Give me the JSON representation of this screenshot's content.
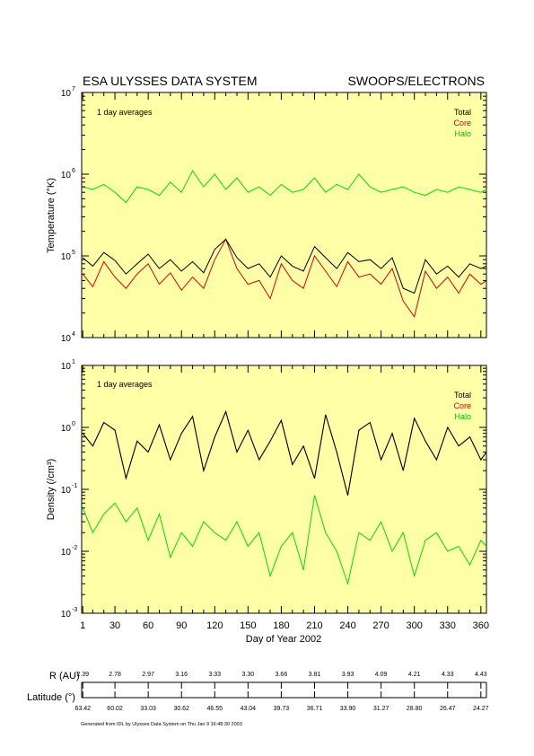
{
  "header": {
    "left_title": "ESA ULYSSES DATA SYSTEM",
    "right_title": "SWOOPS/ELECTRONS"
  },
  "colors": {
    "plot_bg": "#FFFFA8",
    "total": "#000000",
    "core": "#E00000",
    "halo": "#00E000"
  },
  "chart_data": [
    {
      "type": "line",
      "annotation": "1 day averages",
      "ylabel": "Temperature (°K)",
      "xlabel": "",
      "yscale": "log",
      "xlim": [
        0,
        365
      ],
      "ylim": [
        10000,
        10000000
      ],
      "y_tick_labels": [
        "10^4",
        "10^5",
        "10^6",
        "10^7"
      ],
      "legend_placement": "top-right",
      "series": [
        {
          "name": "Total",
          "color": "#000000",
          "x": [
            1,
            10,
            20,
            30,
            40,
            50,
            60,
            70,
            80,
            90,
            100,
            110,
            120,
            130,
            140,
            150,
            160,
            170,
            180,
            190,
            200,
            210,
            220,
            230,
            240,
            250,
            260,
            270,
            280,
            290,
            300,
            310,
            320,
            330,
            340,
            350,
            360,
            365
          ],
          "values": [
            95000,
            75000,
            110000,
            88000,
            60000,
            80000,
            105000,
            70000,
            90000,
            65000,
            85000,
            62000,
            120000,
            160000,
            95000,
            70000,
            80000,
            55000,
            100000,
            75000,
            65000,
            130000,
            95000,
            70000,
            110000,
            85000,
            90000,
            70000,
            95000,
            40000,
            35000,
            90000,
            60000,
            75000,
            55000,
            80000,
            70000,
            75000
          ]
        },
        {
          "name": "Core",
          "color": "#E00000",
          "x": [
            1,
            10,
            20,
            30,
            40,
            50,
            60,
            70,
            80,
            90,
            100,
            110,
            120,
            130,
            140,
            150,
            160,
            170,
            180,
            190,
            200,
            210,
            220,
            230,
            240,
            250,
            260,
            270,
            280,
            290,
            300,
            310,
            320,
            330,
            340,
            350,
            360,
            365
          ],
          "values": [
            60000,
            42000,
            85000,
            55000,
            40000,
            60000,
            80000,
            45000,
            62000,
            38000,
            55000,
            40000,
            90000,
            160000,
            70000,
            45000,
            50000,
            30000,
            80000,
            50000,
            40000,
            100000,
            65000,
            42000,
            85000,
            55000,
            60000,
            45000,
            70000,
            28000,
            18000,
            65000,
            40000,
            55000,
            35000,
            60000,
            45000,
            50000
          ]
        },
        {
          "name": "Halo",
          "color": "#00E000",
          "x": [
            1,
            10,
            20,
            30,
            40,
            50,
            60,
            70,
            80,
            90,
            100,
            110,
            120,
            130,
            140,
            150,
            160,
            170,
            180,
            190,
            200,
            210,
            220,
            230,
            240,
            250,
            260,
            270,
            280,
            290,
            300,
            310,
            320,
            330,
            340,
            350,
            360,
            365
          ],
          "values": [
            700000,
            650000,
            750000,
            600000,
            450000,
            700000,
            650000,
            550000,
            800000,
            600000,
            1100000,
            700000,
            1000000,
            650000,
            900000,
            600000,
            700000,
            550000,
            750000,
            600000,
            650000,
            900000,
            600000,
            750000,
            650000,
            1000000,
            700000,
            600000,
            650000,
            700000,
            600000,
            550000,
            650000,
            600000,
            700000,
            650000,
            600000,
            650000
          ]
        }
      ]
    },
    {
      "type": "line",
      "annotation": "1 day averages",
      "ylabel": "Density (/cm³)",
      "xlabel": "Day of Year 2002",
      "yscale": "log",
      "xlim": [
        0,
        365
      ],
      "ylim": [
        0.001,
        10
      ],
      "y_tick_labels": [
        "10^-3",
        "10^-2",
        "10^-1",
        "10^0",
        "10^1"
      ],
      "x_ticks": [
        1,
        30,
        60,
        90,
        120,
        150,
        180,
        210,
        240,
        270,
        300,
        330,
        360
      ],
      "legend_placement": "top-right",
      "series": [
        {
          "name": "Total",
          "color": "#000000",
          "x": [
            1,
            10,
            20,
            30,
            40,
            50,
            60,
            70,
            80,
            90,
            100,
            110,
            120,
            130,
            140,
            150,
            160,
            170,
            180,
            190,
            200,
            210,
            220,
            230,
            240,
            250,
            260,
            270,
            280,
            290,
            300,
            310,
            320,
            330,
            340,
            350,
            360,
            365
          ],
          "values": [
            0.8,
            0.5,
            1.2,
            0.9,
            0.15,
            0.6,
            0.4,
            1.1,
            0.3,
            0.8,
            1.5,
            0.2,
            0.7,
            1.8,
            0.4,
            0.9,
            0.3,
            0.6,
            1.3,
            0.25,
            0.5,
            0.15,
            1.6,
            0.4,
            0.08,
            0.9,
            1.2,
            0.3,
            0.8,
            0.2,
            1.4,
            0.6,
            0.3,
            1.0,
            0.5,
            0.7,
            0.3,
            0.4
          ]
        },
        {
          "name": "Core",
          "color": "#E00000",
          "x": [
            1,
            10,
            20,
            30,
            40,
            50,
            60,
            70,
            80,
            90,
            100,
            110,
            120,
            130,
            140,
            150,
            160,
            170,
            180,
            190,
            200,
            210,
            220,
            230,
            240,
            250,
            260,
            270,
            280,
            290,
            300,
            310,
            320,
            330,
            340,
            350,
            360,
            365
          ],
          "values": [
            0.8,
            0.5,
            1.2,
            0.9,
            0.15,
            0.6,
            0.4,
            1.1,
            0.3,
            0.8,
            1.5,
            0.2,
            0.7,
            1.8,
            0.4,
            0.9,
            0.3,
            0.6,
            1.3,
            0.25,
            0.5,
            0.15,
            1.6,
            0.4,
            0.08,
            0.9,
            1.2,
            0.3,
            0.8,
            0.2,
            1.4,
            0.6,
            0.3,
            1.0,
            0.5,
            0.7,
            0.3,
            0.4
          ]
        },
        {
          "name": "Halo",
          "color": "#00E000",
          "x": [
            1,
            10,
            20,
            30,
            40,
            50,
            60,
            70,
            80,
            90,
            100,
            110,
            120,
            130,
            140,
            150,
            160,
            170,
            180,
            190,
            200,
            210,
            220,
            230,
            240,
            250,
            260,
            270,
            280,
            290,
            300,
            310,
            320,
            330,
            340,
            350,
            360,
            365
          ],
          "values": [
            0.05,
            0.02,
            0.04,
            0.06,
            0.03,
            0.05,
            0.015,
            0.04,
            0.008,
            0.02,
            0.012,
            0.03,
            0.02,
            0.015,
            0.03,
            0.012,
            0.02,
            0.004,
            0.012,
            0.02,
            0.005,
            0.08,
            0.02,
            0.01,
            0.003,
            0.02,
            0.015,
            0.03,
            0.01,
            0.02,
            0.004,
            0.015,
            0.02,
            0.01,
            0.012,
            0.006,
            0.015,
            0.012
          ]
        }
      ]
    }
  ],
  "axes_labels": {
    "t_exp": [
      "4",
      "5",
      "6",
      "7"
    ],
    "d_exp": [
      "-3",
      "-2",
      "-1",
      "0",
      "1"
    ],
    "x_ticks": [
      "1",
      "30",
      "60",
      "90",
      "120",
      "150",
      "180",
      "210",
      "240",
      "270",
      "300",
      "330",
      "360"
    ]
  },
  "orbit": {
    "r_label": "R (AU)",
    "r_values": [
      "2.39",
      "2.78",
      "2.97",
      "3.16",
      "3.33",
      "3.30",
      "3.66",
      "3.81",
      "3.93",
      "4.09",
      "4.21",
      "4.33",
      "4.43"
    ],
    "lat_label": "Latitude (°)",
    "lat_values": [
      "63.42",
      "60.02",
      "33.03",
      "30.62",
      "46.55",
      "43.04",
      "39.73",
      "36.71",
      "33.90",
      "31.27",
      "28.80",
      "26.47",
      "24.27"
    ]
  },
  "footer": "Generated from IDL by Ulysses Data System on Thu Jan  9 16:48:30 2003"
}
